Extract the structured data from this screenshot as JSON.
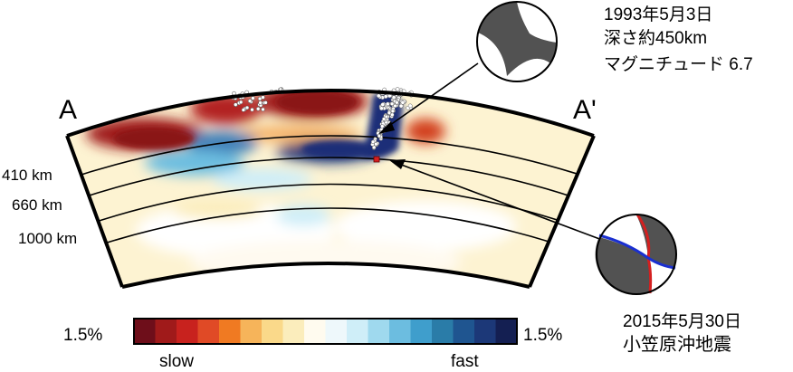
{
  "profile": {
    "start_label": "A",
    "end_label": "A'",
    "depth_labels": [
      "410 km",
      "660 km",
      "1000 km"
    ]
  },
  "events": [
    {
      "name": "1993 event",
      "date": "1993年5月3日",
      "depth": "深さ約450km",
      "magnitude": "マグニチュード 6.7",
      "mechanism_icon": "focal-mechanism-beachball"
    },
    {
      "name": "2015 event",
      "date": "2015年5月30日",
      "title": "小笠原沖地震",
      "mechanism_icon": "focal-mechanism-beachball-with-nodal-planes",
      "nodal_plane_colors": [
        "#d42020",
        "#1a2fd0"
      ]
    }
  ],
  "colorbar": {
    "left_value": "1.5%",
    "right_value": "1.5%",
    "slow_label": "slow",
    "fast_label": "fast",
    "colors": [
      "#6e0e1a",
      "#a01a1a",
      "#c8221e",
      "#e04a26",
      "#f07a22",
      "#f6b45a",
      "#fad98a",
      "#fbedbc",
      "#fffbef",
      "#eef8fb",
      "#cfeef8",
      "#9fd9ee",
      "#6cbde0",
      "#3f9ecc",
      "#2a7ca8",
      "#1f5590",
      "#1c3878",
      "#141f52"
    ]
  },
  "colors": {
    "slow_anomaly": "#a51d1d",
    "fast_anomaly": "#1c2d78",
    "background_mantle": "#fdf3d2"
  }
}
